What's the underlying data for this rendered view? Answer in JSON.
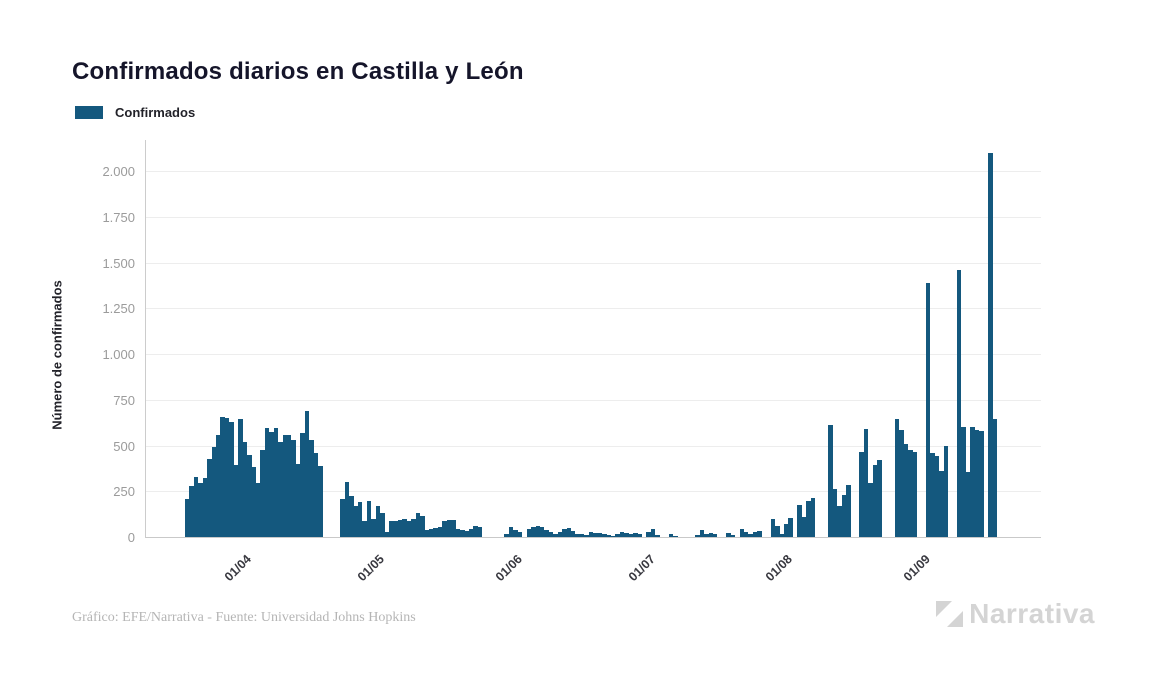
{
  "title": "Confirmados diarios en Castilla y León",
  "legend": {
    "label": "Confirmados",
    "swatch_color": "#14587e"
  },
  "footer": {
    "credit": "Gráfico: EFE/Narrativa - Fuente: Universidad Johns Hopkins"
  },
  "brand": {
    "name": "Narrativa"
  },
  "colors": {
    "bar": "#14587e",
    "grid": "#ededed",
    "axis": "#c9c9c9",
    "ytick_label": "#9b9b9b",
    "xtick_label": "#38383f",
    "title_text": "#15152a",
    "footer_text": "#b5b5b5",
    "logo": "#d4d4d4"
  },
  "chart_data": {
    "type": "bar",
    "title": "Confirmados diarios en Castilla y León",
    "xlabel": "",
    "ylabel": "Número de confirmados",
    "legend_entries": [
      "Confirmados"
    ],
    "legend_position": "top-left",
    "grid": true,
    "ylim": [
      0,
      2175
    ],
    "ytick_values": [
      0,
      250,
      500,
      750,
      1000,
      1250,
      1500,
      1750,
      2000
    ],
    "ytick_labels": [
      "0",
      "250",
      "500",
      "750",
      "1.000",
      "1.250",
      "1.500",
      "1.750",
      "2.000"
    ],
    "xtick_labels": [
      "01/04",
      "01/05",
      "01/06",
      "01/07",
      "01/08",
      "01/09"
    ],
    "xtick_day_indices": [
      13,
      43,
      74,
      104,
      135,
      166
    ],
    "x_unit": "day",
    "values": [
      205,
      280,
      330,
      295,
      320,
      425,
      490,
      555,
      655,
      650,
      630,
      395,
      645,
      520,
      450,
      380,
      295,
      475,
      595,
      575,
      595,
      520,
      560,
      559,
      530,
      400,
      570,
      690,
      528,
      460,
      390,
      0,
      0,
      0,
      0,
      210,
      300,
      222,
      170,
      190,
      87,
      198,
      96,
      167,
      133,
      26,
      87,
      87,
      93,
      96,
      87,
      100,
      130,
      115,
      37,
      44,
      50,
      56,
      87,
      91,
      93,
      41,
      37,
      35,
      41,
      59,
      52,
      0,
      0,
      0,
      0,
      0,
      15,
      52,
      37,
      30,
      0,
      43,
      52,
      61,
      56,
      37,
      30,
      18,
      30,
      43,
      48,
      33,
      18,
      15,
      11,
      30,
      24,
      24,
      18,
      11,
      7,
      15,
      30,
      24,
      18,
      24,
      15,
      0,
      30,
      43,
      11,
      0,
      0,
      18,
      7,
      0,
      0,
      0,
      0,
      11,
      37,
      18,
      24,
      15,
      0,
      0,
      24,
      11,
      0,
      43,
      30,
      15,
      30,
      33,
      0,
      0,
      98,
      60,
      15,
      70,
      106,
      0,
      175,
      108,
      195,
      215,
      0,
      0,
      0,
      611,
      265,
      172,
      228,
      283,
      0,
      0,
      467,
      589,
      295,
      395,
      423,
      0,
      0,
      0,
      645,
      584,
      506,
      478,
      467,
      0,
      0,
      1390,
      461,
      445,
      361,
      495,
      0,
      0,
      1460,
      600,
      356,
      600,
      584,
      578,
      0,
      2100,
      645
    ]
  }
}
